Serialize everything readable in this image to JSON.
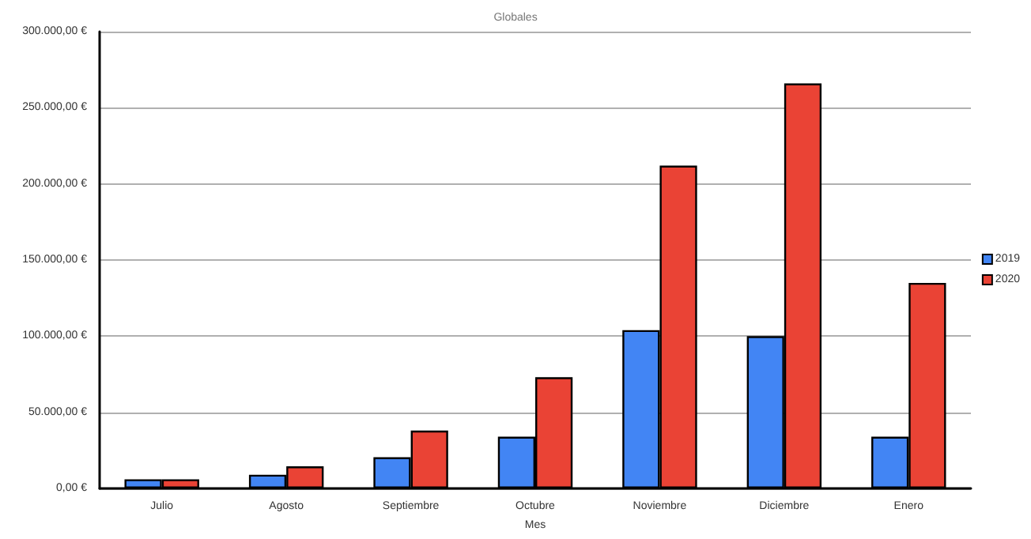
{
  "chart_data": {
    "type": "bar",
    "title": "Globales",
    "xlabel": "Mes",
    "categories": [
      "Julio",
      "Agosto",
      "Septiembre",
      "Octubre",
      "Noviembre",
      "Diciembre",
      "Enero"
    ],
    "series": [
      {
        "name": "2019",
        "color": "#4285f4",
        "values": [
          6000,
          9000,
          20500,
          34000,
          104000,
          100000,
          34000
        ]
      },
      {
        "name": "2020",
        "color": "#ea4335",
        "values": [
          6000,
          14500,
          38000,
          73000,
          212000,
          266000,
          135000
        ]
      }
    ],
    "ylim": [
      0,
      300000
    ],
    "yticks": [
      {
        "value": 0,
        "label": "0,00 €"
      },
      {
        "value": 50000,
        "label": "50.000,00 €"
      },
      {
        "value": 100000,
        "label": "100.000,00 €"
      },
      {
        "value": 150000,
        "label": "150.000,00 €"
      },
      {
        "value": 200000,
        "label": "200.000,00 €"
      },
      {
        "value": 250000,
        "label": "250.000,00 €"
      },
      {
        "value": 300000,
        "label": "300.000,00 €"
      }
    ],
    "grid": "y",
    "legend": "right"
  }
}
